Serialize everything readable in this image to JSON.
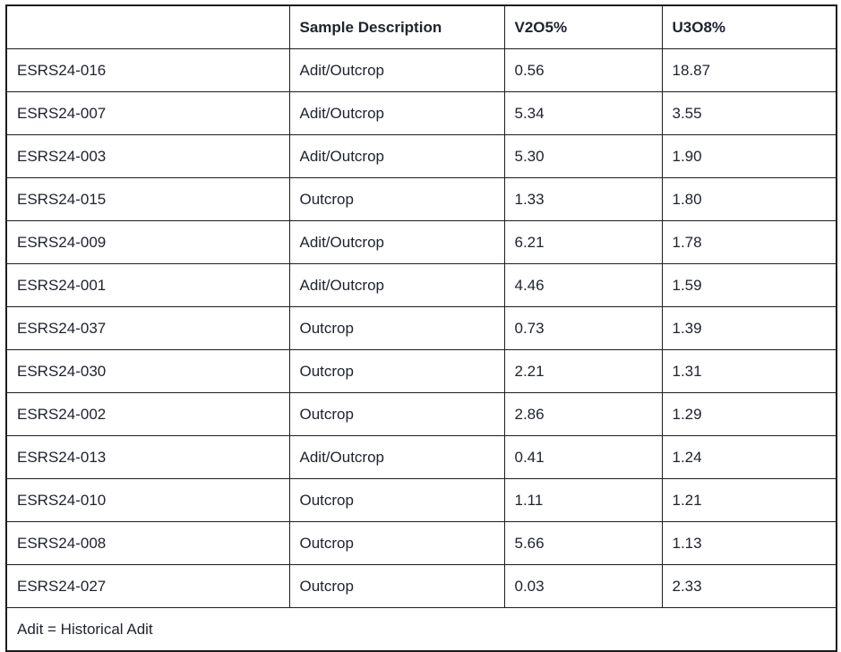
{
  "colors": {
    "background": "#ffffff",
    "text": "#20242e",
    "border": "#1c1c1c"
  },
  "table": {
    "columns": [
      "",
      "Sample Description",
      "V2O5%",
      "U3O8%"
    ],
    "rows": [
      [
        "ESRS24-016",
        "Adit/Outcrop",
        "0.56",
        "18.87"
      ],
      [
        "ESRS24-007",
        "Adit/Outcrop",
        "5.34",
        "3.55"
      ],
      [
        "ESRS24-003",
        "Adit/Outcrop",
        "5.30",
        "1.90"
      ],
      [
        "ESRS24-015",
        "Outcrop",
        "1.33",
        "1.80"
      ],
      [
        "ESRS24-009",
        "Adit/Outcrop",
        "6.21",
        "1.78"
      ],
      [
        "ESRS24-001",
        "Adit/Outcrop",
        "4.46",
        "1.59"
      ],
      [
        "ESRS24-037",
        "Outcrop",
        "0.73",
        "1.39"
      ],
      [
        "ESRS24-030",
        "Outcrop",
        "2.21",
        "1.31"
      ],
      [
        "ESRS24-002",
        "Outcrop",
        "2.86",
        "1.29"
      ],
      [
        "ESRS24-013",
        "Adit/Outcrop",
        "0.41",
        "1.24"
      ],
      [
        "ESRS24-010",
        "Outcrop",
        "1.11",
        "1.21"
      ],
      [
        "ESRS24-008",
        "Outcrop",
        "5.66",
        "1.13"
      ],
      [
        "ESRS24-027",
        "Outcrop",
        "0.03",
        "2.33"
      ]
    ],
    "footnote": "Adit = Historical Adit"
  }
}
